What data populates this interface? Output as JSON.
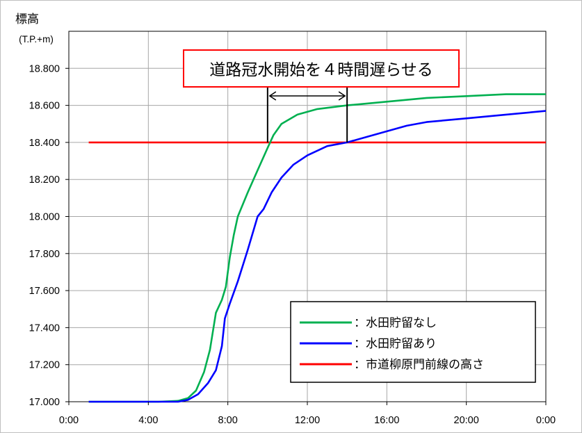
{
  "chart_data": {
    "type": "line",
    "ylabel_line1": "標高",
    "ylabel_line2": "(T.P.+m)",
    "x_tick_labels": [
      "0:00",
      "4:00",
      "8:00",
      "12:00",
      "16:00",
      "20:00",
      "0:00"
    ],
    "x_tick_hours": [
      0,
      4,
      8,
      12,
      16,
      20,
      24
    ],
    "xlim": [
      0,
      24
    ],
    "ylim": [
      17.0,
      19.0
    ],
    "y_ticks": [
      17.0,
      17.2,
      17.4,
      17.6,
      17.8,
      18.0,
      18.2,
      18.4,
      18.6,
      18.8
    ],
    "y_tick_labels": [
      "17.000",
      "17.200",
      "17.400",
      "17.600",
      "17.800",
      "18.000",
      "18.200",
      "18.400",
      "18.600",
      "18.800"
    ],
    "grid": true,
    "legend_position": "bottom-right",
    "series": [
      {
        "name": "水田貯留なし",
        "legend_label": "：水田貯留なし",
        "color": "#00b050",
        "points": [
          [
            1.0,
            17.0
          ],
          [
            4.5,
            17.0
          ],
          [
            5.5,
            17.005
          ],
          [
            6.0,
            17.02
          ],
          [
            6.4,
            17.06
          ],
          [
            6.8,
            17.16
          ],
          [
            7.1,
            17.28
          ],
          [
            7.4,
            17.48
          ],
          [
            7.7,
            17.55
          ],
          [
            7.9,
            17.62
          ],
          [
            8.1,
            17.78
          ],
          [
            8.3,
            17.9
          ],
          [
            8.5,
            18.0
          ],
          [
            9.0,
            18.13
          ],
          [
            9.5,
            18.25
          ],
          [
            10.0,
            18.37
          ],
          [
            10.3,
            18.44
          ],
          [
            10.7,
            18.5
          ],
          [
            11.5,
            18.55
          ],
          [
            12.5,
            18.58
          ],
          [
            14.0,
            18.6
          ],
          [
            16.0,
            18.62
          ],
          [
            18.0,
            18.64
          ],
          [
            20.0,
            18.65
          ],
          [
            22.0,
            18.66
          ],
          [
            24.0,
            18.66
          ]
        ]
      },
      {
        "name": "水田貯留あり",
        "legend_label": "：水田貯留あり",
        "color": "#0000ff",
        "points": [
          [
            1.0,
            17.0
          ],
          [
            5.5,
            17.0
          ],
          [
            6.0,
            17.01
          ],
          [
            6.5,
            17.04
          ],
          [
            7.0,
            17.1
          ],
          [
            7.4,
            17.17
          ],
          [
            7.7,
            17.3
          ],
          [
            7.85,
            17.45
          ],
          [
            8.1,
            17.53
          ],
          [
            8.5,
            17.65
          ],
          [
            9.0,
            17.82
          ],
          [
            9.5,
            18.0
          ],
          [
            9.8,
            18.04
          ],
          [
            10.2,
            18.13
          ],
          [
            10.7,
            18.21
          ],
          [
            11.3,
            18.28
          ],
          [
            12.0,
            18.33
          ],
          [
            13.0,
            18.38
          ],
          [
            14.0,
            18.4
          ],
          [
            15.0,
            18.43
          ],
          [
            16.0,
            18.46
          ],
          [
            17.0,
            18.49
          ],
          [
            18.0,
            18.51
          ],
          [
            20.0,
            18.53
          ],
          [
            22.0,
            18.55
          ],
          [
            24.0,
            18.57
          ]
        ]
      },
      {
        "name": "市道柳原門前線の高さ",
        "legend_label": "：市道柳原門前線の高さ",
        "color": "#ff0000",
        "points": [
          [
            1.0,
            18.4
          ],
          [
            24.0,
            18.4
          ]
        ]
      }
    ],
    "annotation": {
      "text": "道路冠水開始を４時間遅らせる",
      "border_color": "#ff0000",
      "text_color": "#ff0000",
      "from_hour": 10.0,
      "to_hour": 14.0
    }
  }
}
